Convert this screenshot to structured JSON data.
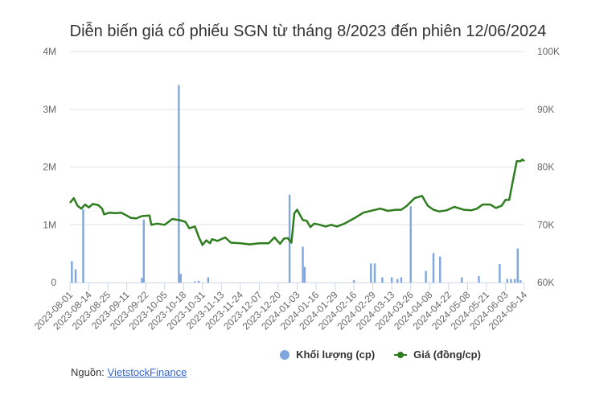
{
  "title": "Diễn biến giá cổ phiếu SGN từ tháng 8/2023 đến phiên 12/06/2024",
  "legend": {
    "volume_label": "Khối lượng (cp)",
    "price_label": "Giá (đồng/cp)"
  },
  "source": {
    "prefix": "Nguồn: ",
    "link_text": "VietstockFinance"
  },
  "colors": {
    "volume": "#7ea7dd",
    "price": "#2e7d1f",
    "grid": "#e6e6e6",
    "axis_text": "#666666"
  },
  "chart_data": {
    "type": "bar+line",
    "title": "Diễn biến giá cổ phiếu SGN từ tháng 8/2023 đến phiên 12/06/2024",
    "xlabel": "",
    "ylabel_left": "Khối lượng (cp)",
    "ylabel_right": "Giá (đồng/cp)",
    "ylim_left": [
      0,
      4000000
    ],
    "ylim_right": [
      60000,
      100000
    ],
    "yticks_left": [
      "0",
      "1M",
      "2M",
      "3M",
      "4M"
    ],
    "yticks_right": [
      "60K",
      "70K",
      "80K",
      "90K",
      "100K"
    ],
    "grid": true,
    "legend_position": "bottom",
    "categories": [
      "2023-08-01",
      "2023-08-14",
      "2023-08-25",
      "2023-09-11",
      "2023-09-22",
      "2023-10-05",
      "2023-10-18",
      "2023-10-31",
      "2023-11-13",
      "2023-11-24",
      "2023-12-07",
      "2023-12-20",
      "2024-01-03",
      "2024-01-16",
      "2024-01-29",
      "2024-02-16",
      "2024-02-29",
      "2024-03-13",
      "2024-03-26",
      "2024-04-08",
      "2024-04-22",
      "2024-05-08",
      "2024-05-21",
      "2024-06-03",
      "2024-06-14"
    ],
    "series": [
      {
        "name": "Khối lượng (cp)",
        "type": "bar",
        "axis": "left",
        "points": [
          {
            "x": 0.1,
            "v": 370000
          },
          {
            "x": 0.3,
            "v": 230000
          },
          {
            "x": 0.7,
            "v": 1270000
          },
          {
            "x": 3.8,
            "v": 80000
          },
          {
            "x": 3.9,
            "v": 1090000
          },
          {
            "x": 5.75,
            "v": 3420000
          },
          {
            "x": 5.85,
            "v": 150000
          },
          {
            "x": 6.6,
            "v": 20000
          },
          {
            "x": 6.8,
            "v": 30000
          },
          {
            "x": 7.3,
            "v": 90000
          },
          {
            "x": 11.6,
            "v": 1520000
          },
          {
            "x": 12.3,
            "v": 620000
          },
          {
            "x": 12.4,
            "v": 270000
          },
          {
            "x": 15.0,
            "v": 40000
          },
          {
            "x": 15.9,
            "v": 330000
          },
          {
            "x": 16.1,
            "v": 330000
          },
          {
            "x": 16.5,
            "v": 90000
          },
          {
            "x": 17.0,
            "v": 90000
          },
          {
            "x": 17.3,
            "v": 60000
          },
          {
            "x": 17.5,
            "v": 90000
          },
          {
            "x": 18.0,
            "v": 1320000
          },
          {
            "x": 18.8,
            "v": 200000
          },
          {
            "x": 19.2,
            "v": 510000
          },
          {
            "x": 19.55,
            "v": 450000
          },
          {
            "x": 20.7,
            "v": 90000
          },
          {
            "x": 21.6,
            "v": 110000
          },
          {
            "x": 22.7,
            "v": 320000
          },
          {
            "x": 23.1,
            "v": 60000
          },
          {
            "x": 23.3,
            "v": 60000
          },
          {
            "x": 23.5,
            "v": 60000
          },
          {
            "x": 23.65,
            "v": 590000
          },
          {
            "x": 23.8,
            "v": 40000
          }
        ]
      },
      {
        "name": "Giá (đồng/cp)",
        "type": "line",
        "axis": "right",
        "points": [
          [
            0.0,
            73800
          ],
          [
            0.2,
            74600
          ],
          [
            0.4,
            73300
          ],
          [
            0.6,
            72800
          ],
          [
            0.8,
            73500
          ],
          [
            1.0,
            73000
          ],
          [
            1.2,
            73600
          ],
          [
            1.5,
            73400
          ],
          [
            1.7,
            72800
          ],
          [
            1.8,
            71800
          ],
          [
            2.1,
            72100
          ],
          [
            2.4,
            72000
          ],
          [
            2.7,
            72100
          ],
          [
            3.0,
            71600
          ],
          [
            3.2,
            71200
          ],
          [
            3.5,
            71100
          ],
          [
            3.8,
            71500
          ],
          [
            4.2,
            71600
          ],
          [
            4.3,
            70000
          ],
          [
            4.6,
            70200
          ],
          [
            5.0,
            70000
          ],
          [
            5.2,
            70500
          ],
          [
            5.4,
            71000
          ],
          [
            5.8,
            70800
          ],
          [
            6.1,
            70500
          ],
          [
            6.3,
            69400
          ],
          [
            6.6,
            69700
          ],
          [
            6.8,
            67900
          ],
          [
            7.0,
            66500
          ],
          [
            7.2,
            67300
          ],
          [
            7.4,
            66800
          ],
          [
            7.5,
            67500
          ],
          [
            7.8,
            67200
          ],
          [
            8.2,
            67800
          ],
          [
            8.5,
            66900
          ],
          [
            9.0,
            66800
          ],
          [
            9.5,
            66600
          ],
          [
            10.0,
            66800
          ],
          [
            10.5,
            66800
          ],
          [
            10.8,
            67800
          ],
          [
            11.1,
            66700
          ],
          [
            11.3,
            67600
          ],
          [
            11.5,
            67700
          ],
          [
            11.7,
            66900
          ],
          [
            11.85,
            72000
          ],
          [
            12.0,
            72600
          ],
          [
            12.3,
            70800
          ],
          [
            12.5,
            70700
          ],
          [
            12.7,
            69600
          ],
          [
            12.9,
            70200
          ],
          [
            13.2,
            70000
          ],
          [
            13.5,
            69700
          ],
          [
            13.8,
            70000
          ],
          [
            14.1,
            69700
          ],
          [
            14.5,
            70200
          ],
          [
            15.0,
            71100
          ],
          [
            15.5,
            72100
          ],
          [
            16.0,
            72500
          ],
          [
            16.4,
            72800
          ],
          [
            16.8,
            72400
          ],
          [
            17.2,
            72600
          ],
          [
            17.5,
            72600
          ],
          [
            17.8,
            73300
          ],
          [
            18.2,
            74600
          ],
          [
            18.6,
            75000
          ],
          [
            18.9,
            73300
          ],
          [
            19.2,
            72600
          ],
          [
            19.5,
            72300
          ],
          [
            19.9,
            72500
          ],
          [
            20.3,
            73100
          ],
          [
            20.8,
            72600
          ],
          [
            21.2,
            72500
          ],
          [
            21.5,
            72800
          ],
          [
            21.8,
            73500
          ],
          [
            22.2,
            73500
          ],
          [
            22.5,
            72900
          ],
          [
            22.8,
            73300
          ],
          [
            23.0,
            74300
          ],
          [
            23.2,
            74300
          ],
          [
            23.4,
            77700
          ],
          [
            23.6,
            81000
          ],
          [
            23.8,
            81000
          ],
          [
            23.9,
            81300
          ],
          [
            24.0,
            81000
          ]
        ]
      }
    ]
  }
}
